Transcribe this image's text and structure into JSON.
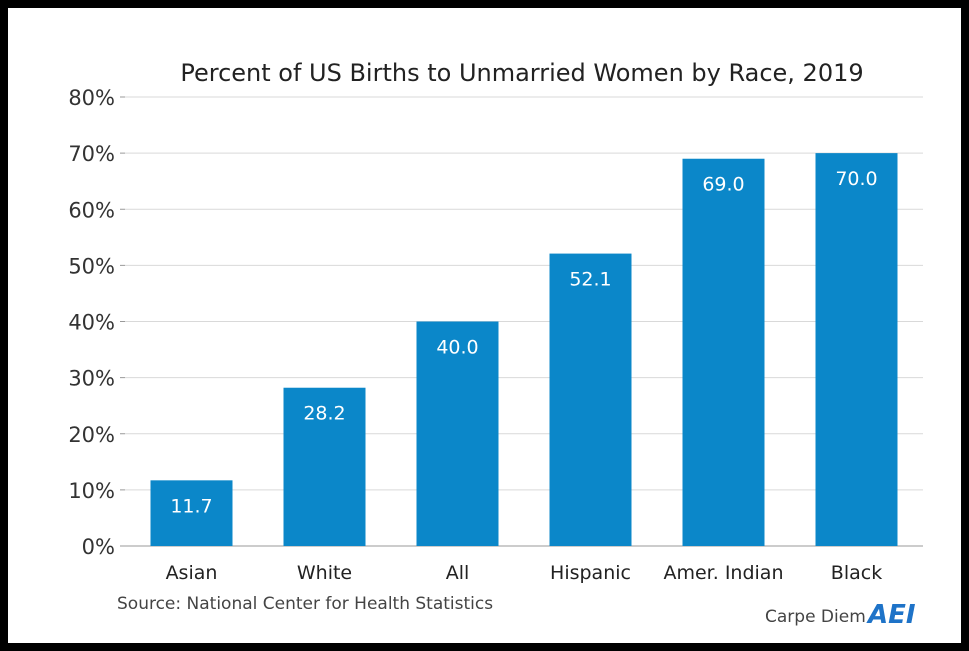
{
  "chart_data": {
    "type": "bar",
    "title": "Percent of US Births to Unmarried Women by Race, 2019",
    "categories": [
      "Asian",
      "White",
      "All",
      "Hispanic",
      "Amer. Indian",
      "Black"
    ],
    "values": [
      11.7,
      28.2,
      40.0,
      52.1,
      69.0,
      70.0
    ],
    "value_labels": [
      "11.7",
      "28.2",
      "40.0",
      "52.1",
      "69.0",
      "70.0"
    ],
    "y_ticks": [
      "0%",
      "10%",
      "20%",
      "30%",
      "40%",
      "50%",
      "60%",
      "70%",
      "80%"
    ],
    "ylim": [
      0,
      80
    ],
    "grid": true,
    "bar_color": "#0b87c9"
  },
  "footer": {
    "source": "Source: National Center for Health Statistics",
    "brand": "Carpe Diem",
    "logo": "AEI"
  }
}
